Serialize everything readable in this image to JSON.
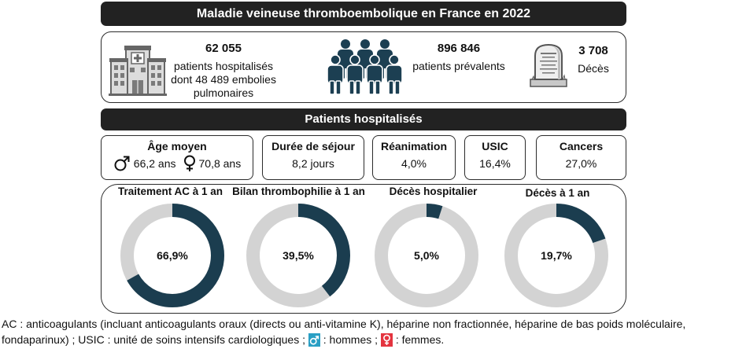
{
  "header": {
    "title": "Maladie veineuse thromboembolique en France en 2022"
  },
  "summary": {
    "hospitalized": {
      "icon": "hospital-icon",
      "count": "62 055",
      "line1": "patients hospitalisés",
      "line2": "dont 48 489 embolies",
      "line3": "pulmonaires"
    },
    "prevalent": {
      "icon": "people-group-icon",
      "count": "896 846",
      "label": "patients prévalents"
    },
    "deaths": {
      "icon": "gravestone-icon",
      "count": "3 708",
      "label": "Décès"
    }
  },
  "section": {
    "title": "Patients hospitalisés"
  },
  "stats": {
    "age": {
      "label": "Âge moyen",
      "male_icon": "male-symbol-icon",
      "male_value": "66,2 ans",
      "female_icon": "female-symbol-icon",
      "female_value": "70,8 ans"
    },
    "stay": {
      "label": "Durée de séjour",
      "value": "8,2 jours"
    },
    "icu": {
      "label": "Réanimation",
      "value": "4,0%"
    },
    "usic": {
      "label": "USIC",
      "value": "16,4%"
    },
    "cancers": {
      "label": "Cancers",
      "value": "27,0%"
    }
  },
  "chart_data": [
    {
      "type": "pie",
      "title": "Traitement AC à 1 an",
      "value": 66.9,
      "max": 100,
      "value_label": "66,9%"
    },
    {
      "type": "pie",
      "title": "Bilan thrombophilie à 1 an",
      "value": 39.5,
      "max": 100,
      "value_label": "39,5%"
    },
    {
      "type": "pie",
      "title": "Décès hospitalier",
      "value": 5.0,
      "max": 100,
      "value_label": "5,0%"
    },
    {
      "type": "pie",
      "title": "Décès à 1 an",
      "value": 19.7,
      "max": 100,
      "value_label": "19,7%"
    }
  ],
  "footer": {
    "line1": "AC : anticoagulants (incluant anticoagulants oraux (directs ou anti-vitamine K), héparine non fractionnée, héparine de bas poids moléculaire,",
    "line2": "fondaparinux) ; USIC : unité de soins intensifs cardiologiques ;",
    "male_icon": "male-legend-icon",
    "male_legend": ": hommes ;",
    "female_icon": "female-legend-icon",
    "female_legend": ": femmes."
  },
  "colors": {
    "bar": "#222222",
    "donut_fill": "#1b3d4f",
    "donut_track": "#d3d3d3",
    "people": "#1c3f52",
    "male_chip": "#2a9fc4",
    "female_chip": "#e4343f"
  }
}
